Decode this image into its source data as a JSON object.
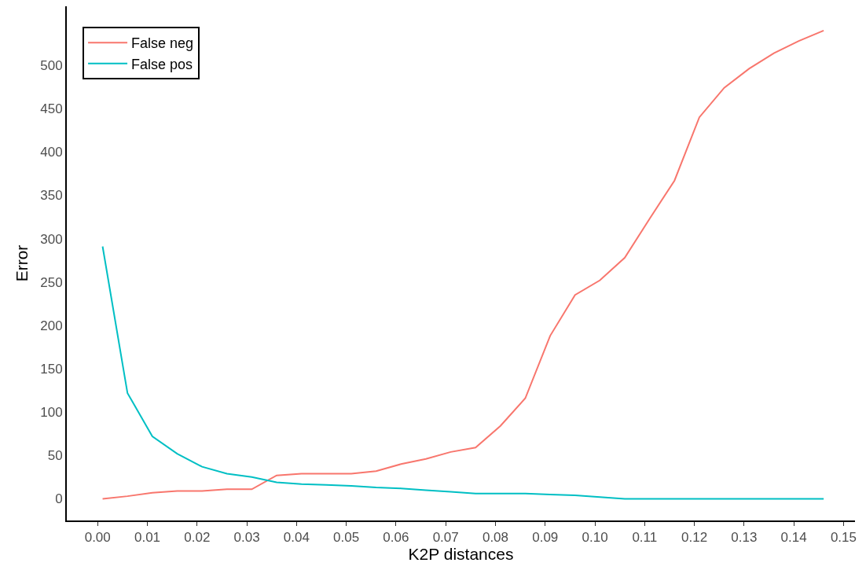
{
  "chart_data": {
    "type": "line",
    "xlabel": "K2P distances",
    "ylabel": "Error",
    "x": [
      0.001,
      0.006,
      0.011,
      0.016,
      0.021,
      0.026,
      0.031,
      0.036,
      0.041,
      0.046,
      0.051,
      0.056,
      0.061,
      0.066,
      0.071,
      0.076,
      0.081,
      0.086,
      0.091,
      0.096,
      0.101,
      0.106,
      0.111,
      0.116,
      0.121,
      0.126,
      0.131,
      0.136,
      0.141,
      0.146
    ],
    "series": [
      {
        "name": "False neg",
        "color": "#f8766d",
        "values": [
          0,
          3,
          7,
          9,
          9,
          11,
          11,
          27,
          29,
          29,
          29,
          32,
          40,
          46,
          54,
          59,
          84,
          116,
          188,
          235,
          252,
          278,
          323,
          367,
          440,
          474,
          496,
          514,
          528,
          540
        ]
      },
      {
        "name": "False pos",
        "color": "#00bfc4",
        "values": [
          291,
          122,
          72,
          52,
          37,
          29,
          25,
          19,
          17,
          16,
          15,
          13,
          12,
          10,
          8,
          6,
          6,
          6,
          5,
          4,
          2,
          0,
          0,
          0,
          0,
          0,
          0,
          0,
          0,
          0
        ]
      }
    ],
    "xlim": [
      -0.0062,
      0.1523
    ],
    "ylim": [
      -25,
      568
    ],
    "xticks": [
      {
        "value": 0,
        "label": "0.00"
      },
      {
        "value": 0.01,
        "label": "0.01"
      },
      {
        "value": 0.02,
        "label": "0.02"
      },
      {
        "value": 0.03,
        "label": "0.03"
      },
      {
        "value": 0.04,
        "label": "0.04"
      },
      {
        "value": 0.05,
        "label": "0.05"
      },
      {
        "value": 0.06,
        "label": "0.06"
      },
      {
        "value": 0.07,
        "label": "0.07"
      },
      {
        "value": 0.08,
        "label": "0.08"
      },
      {
        "value": 0.09,
        "label": "0.09"
      },
      {
        "value": 0.1,
        "label": "0.10"
      },
      {
        "value": 0.11,
        "label": "0.11"
      },
      {
        "value": 0.12,
        "label": "0.12"
      },
      {
        "value": 0.13,
        "label": "0.13"
      },
      {
        "value": 0.14,
        "label": "0.14"
      },
      {
        "value": 0.15,
        "label": "0.15"
      }
    ],
    "yticks": [
      0,
      50,
      100,
      150,
      200,
      250,
      300,
      350,
      400,
      450,
      500
    ],
    "legend": "top left",
    "marker": "none",
    "line_style": "solid"
  }
}
